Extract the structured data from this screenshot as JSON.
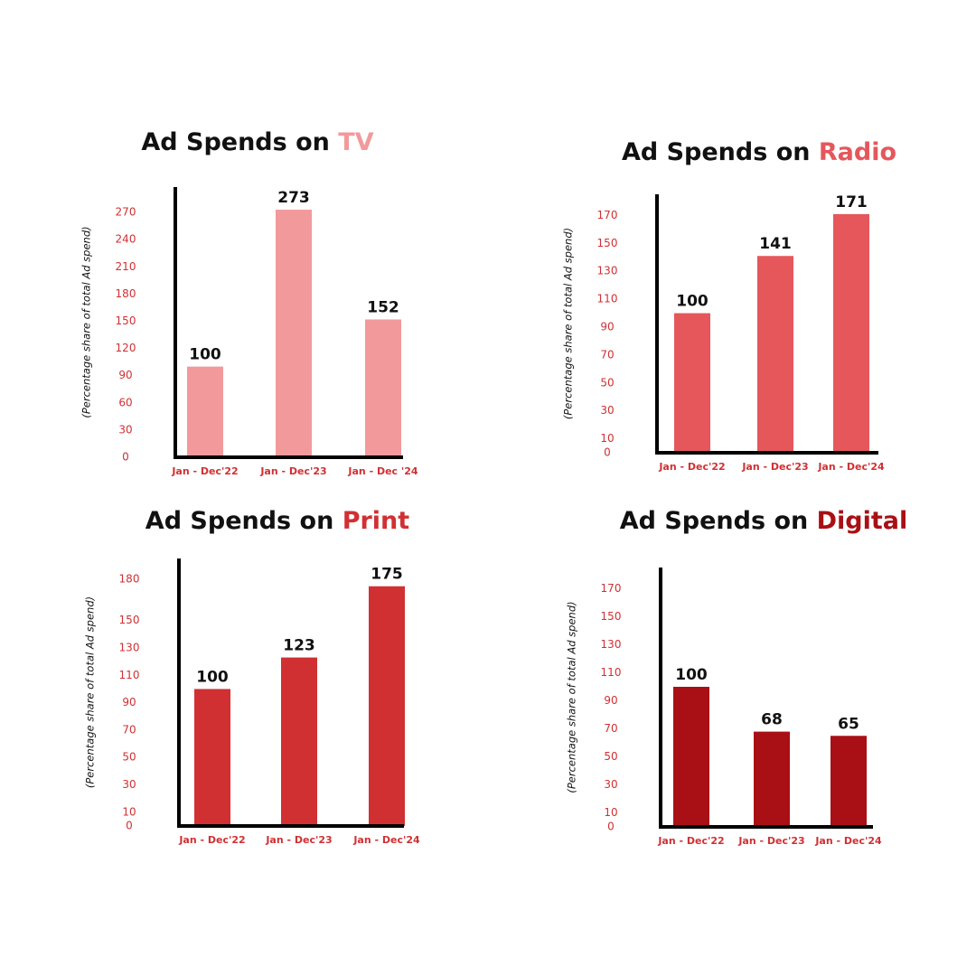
{
  "chart_data": [
    {
      "type": "bar",
      "title": "Ad Spends on",
      "subject": "TV",
      "subject_color": "#f2999c",
      "y_label": "(Percentage share of total Ad spend)",
      "categories": [
        "Jan - Dec'22",
        "Jan - Dec'23",
        "Jan - Dec '24"
      ],
      "values": [
        100,
        273,
        152
      ],
      "color": "#f2999c",
      "ylim": [
        0,
        290
      ],
      "yticks": [
        0,
        30,
        60,
        90,
        120,
        150,
        180,
        210,
        240,
        270
      ]
    },
    {
      "type": "bar",
      "title": "Ad Spends on",
      "subject": "Radio",
      "subject_color": "#e5575b",
      "y_label": "(Percentage share of total Ad spend)",
      "categories": [
        "Jan - Dec'22",
        "Jan - Dec'23",
        "Jan - Dec'24"
      ],
      "values": [
        100,
        141,
        171
      ],
      "color": "#e5575b",
      "ylim": [
        0,
        180
      ],
      "yticks": [
        0,
        10,
        30,
        50,
        70,
        90,
        110,
        130,
        150,
        170
      ]
    },
    {
      "type": "bar",
      "title": "Ad Spends on",
      "subject": "Print",
      "subject_color": "#d13033",
      "y_label": "(Percentage share of total Ad spend)",
      "categories": [
        "Jan - Dec'22",
        "Jan - Dec'23",
        "Jan - Dec'24"
      ],
      "values": [
        100,
        123,
        175
      ],
      "color": "#d13033",
      "ylim": [
        0,
        190
      ],
      "yticks": [
        0,
        10,
        30,
        50,
        70,
        90,
        110,
        130,
        150,
        180
      ]
    },
    {
      "type": "bar",
      "title": "Ad Spends on",
      "subject": "Digital",
      "subject_color": "#a81015",
      "y_label": "(Percentage share of total Ad spend)",
      "categories": [
        "Jan - Dec'22",
        "Jan - Dec'23",
        "Jan - Dec'24"
      ],
      "values": [
        100,
        68,
        65
      ],
      "color": "#a81015",
      "ylim": [
        0,
        180
      ],
      "yticks": [
        0,
        10,
        30,
        50,
        70,
        90,
        110,
        130,
        150,
        170
      ]
    }
  ]
}
